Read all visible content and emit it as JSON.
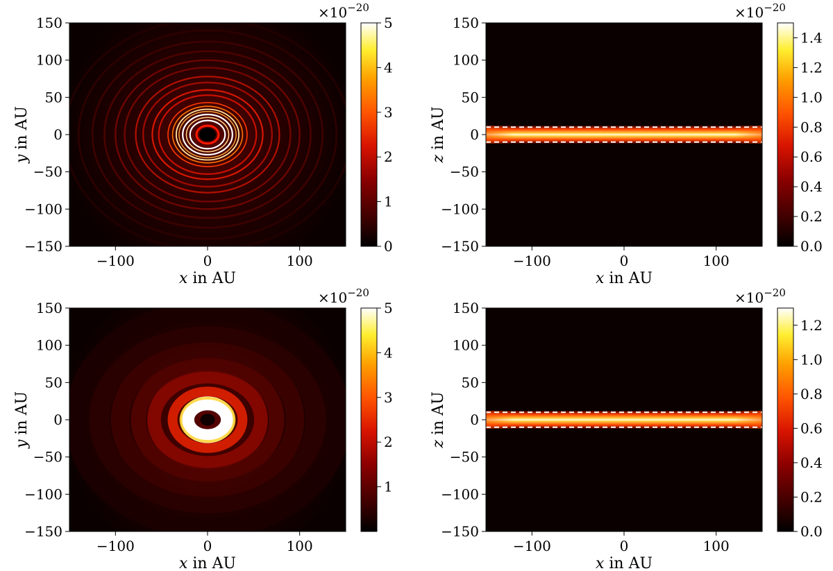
{
  "chart_data": [
    {
      "type": "heatmap",
      "panel": "top-left",
      "xlabel_var": "x",
      "xlabel_unit": "in AU",
      "ylabel_var": "y",
      "ylabel_unit": "in AU",
      "xlim": [
        -150,
        150
      ],
      "ylim": [
        -150,
        150
      ],
      "xticks": [
        -100,
        0,
        100
      ],
      "yticks": [
        150,
        100,
        50,
        0,
        -50,
        -100,
        -150
      ],
      "colorbar": {
        "scale_label": "×10−20",
        "min": 0,
        "max": 5,
        "ticks": [
          0,
          1,
          2,
          3,
          4,
          5
        ]
      },
      "pattern": "face-on disk: dark central hole, bright white inner ring, decaying ring series"
    },
    {
      "type": "heatmap",
      "panel": "top-right",
      "xlabel_var": "x",
      "xlabel_unit": "in AU",
      "ylabel_var": "z",
      "ylabel_unit": "in AU",
      "xlim": [
        -150,
        150
      ],
      "ylim": [
        -150,
        150
      ],
      "xticks": [
        -100,
        0,
        100
      ],
      "yticks": [
        150,
        100,
        50,
        0,
        -50,
        -100,
        -150
      ],
      "colorbar": {
        "scale_label": "×10−20",
        "min": 0,
        "max": 1.5,
        "ticks": [
          0.0,
          0.2,
          0.4,
          0.6,
          0.8,
          1.0,
          1.2,
          1.4
        ]
      },
      "dashed_lines_z": [
        10,
        -10
      ],
      "pattern": "edge-on disk: bright horizontal band between z = -10 and z = 10"
    },
    {
      "type": "heatmap",
      "panel": "bottom-left",
      "xlabel_var": "x",
      "xlabel_unit": "in AU",
      "ylabel_var": "y",
      "ylabel_unit": "in AU",
      "xlim": [
        -150,
        150
      ],
      "ylim": [
        -150,
        150
      ],
      "xticks": [
        -100,
        0,
        100
      ],
      "yticks": [
        150,
        100,
        50,
        0,
        -50,
        -100,
        -150
      ],
      "colorbar": {
        "scale_label": "×10−20",
        "min": 0,
        "max": 5,
        "ticks": [
          1,
          2,
          3,
          4,
          5
        ]
      },
      "pattern": "face-on disk: dark core, bright white ring, smooth broad rings"
    },
    {
      "type": "heatmap",
      "panel": "bottom-right",
      "xlabel_var": "x",
      "xlabel_unit": "in AU",
      "ylabel_var": "z",
      "ylabel_unit": "in AU",
      "xlim": [
        -150,
        150
      ],
      "ylim": [
        -150,
        150
      ],
      "xticks": [
        -100,
        0,
        100
      ],
      "yticks": [
        150,
        100,
        50,
        0,
        -50,
        -100,
        -150
      ],
      "colorbar": {
        "scale_label": "×10−20",
        "min": 0,
        "max": 1.3,
        "ticks": [
          0.0,
          0.2,
          0.4,
          0.6,
          0.8,
          1.0,
          1.2
        ]
      },
      "dashed_lines_z": [
        10,
        -10
      ],
      "pattern": "edge-on disk: bright horizontal band between z = -10 and z = 10"
    }
  ]
}
